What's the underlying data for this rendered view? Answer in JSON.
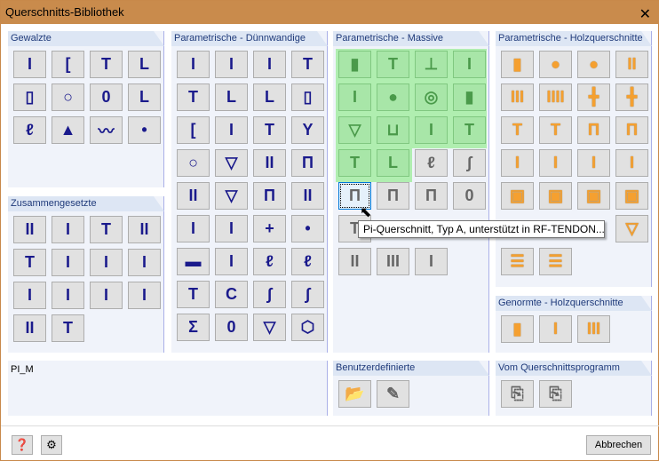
{
  "window": {
    "title": "Querschnitts-Bibliothek",
    "close_icon": "close-icon"
  },
  "panels": {
    "gewalzte": {
      "title": "Gewalzte",
      "icons": [
        "i-beam",
        "channel",
        "tee",
        "angle",
        "rect-hollow",
        "circle-hollow",
        "oval-hollow",
        "angle-unequal",
        "z-section",
        "rail",
        "sheet-pile",
        "round-bar-flat"
      ]
    },
    "zusammengesetzte": {
      "title": "Zusammengesetzte",
      "icons": [
        "double-i",
        "i-channel",
        "tee-plate",
        "double-angle-tee",
        "tee-double",
        "i-double",
        "i-stiffened",
        "i-plate",
        "i-small",
        "i-tee",
        "i-double-small",
        "i-box",
        "double-circle",
        "tee-wide"
      ]
    },
    "duennwandige": {
      "title": "Parametrische - Dünnwandige",
      "icons": [
        "i-thin",
        "i-thin-2",
        "i-thin-3",
        "tee-thin",
        "tee-thin-2",
        "angle-thin",
        "angle-thin-2",
        "rect-thin",
        "channel-thin",
        "i-thin-lipped",
        "tee-thin-3",
        "y-thin",
        "circle-thin",
        "triangle-thin",
        "double-i-thin",
        "pi-thin",
        "double-i-thin-2",
        "trapezoid-thin",
        "pi-thin-2",
        "double-i-thin-3",
        "i-thin-4",
        "i-thin-5",
        "plus-thin",
        "point",
        "bar-thin",
        "i-thin-6",
        "z-thin",
        "z-thin-2",
        "tee-thin-4",
        "c-thin-lipped",
        "s-thin",
        "s-thin-2",
        "sigma-thin",
        "oval-thin",
        "trapezoid-thin-2",
        "polygon-thin"
      ]
    },
    "massive": {
      "title": "Parametrische - Massive",
      "icons": [
        "rect-solid",
        "tee-solid",
        "inverted-tee-solid",
        "i-solid",
        "i-solid-2",
        "circle-solid",
        "ring-solid",
        "rect-hollow-solid",
        "trapezoid-solid",
        "u-solid",
        "i-tapered-solid",
        "tee-tapered-solid",
        "tee-solid-2",
        "angle-solid",
        "z-solid",
        "s-solid",
        "pi-a",
        "pi-b",
        "pi-c",
        "oval-solid",
        "tee-bulb",
        "",
        "",
        "",
        "double-bar",
        "triple-bar",
        "i-slab"
      ],
      "tooltip": "Pi-Querschnitt, Typ A, unterstützt in RF-TENDON..."
    },
    "holz": {
      "title": "Parametrische - Holzquerschnitte",
      "icons": [
        "rect-timber",
        "circle-timber",
        "circle-split-timber",
        "double-timber",
        "triple-timber",
        "quad-timber",
        "cross-timber",
        "cross-double-timber",
        "tee-timber",
        "tee-timber-2",
        "pi-timber",
        "pi-timber-2",
        "i-timber",
        "i-timber-2",
        "i-timber-3",
        "i-timber-4",
        "box-timber",
        "box-timber-2",
        "box-timber-3",
        "box-timber-4",
        "",
        "",
        "",
        "trapezoid-timber",
        "layered-timber",
        "layered-timber-2"
      ]
    },
    "genormte": {
      "title": "Genormte - Holzquerschnitte",
      "icons": [
        "rect-timber-std",
        "i-timber-std",
        "triple-timber-std"
      ]
    },
    "benutzer": {
      "title": "Benutzerdefinierte",
      "icons": [
        "open-folder",
        "edit-section"
      ]
    },
    "programm": {
      "title": "Vom Querschnittsprogramm",
      "icons": [
        "import-section",
        "import-section-2"
      ]
    }
  },
  "selected_name": "PI_M",
  "footer": {
    "help_icon": "help-icon",
    "library_icon": "library-icon",
    "cancel": "Abbrechen"
  },
  "colors": {
    "title_bar": "#c98b4c",
    "selection_green": "#a8e6a8",
    "timber_orange": "#f5a030",
    "steel_blue": "#1a1a8c"
  }
}
